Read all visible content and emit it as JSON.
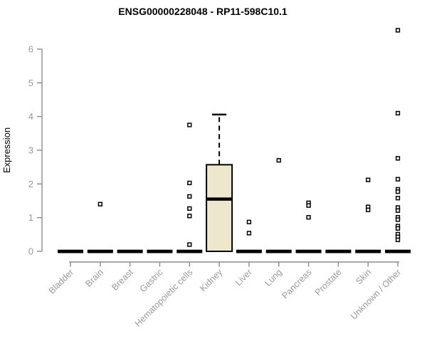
{
  "chart_data": {
    "type": "boxplot",
    "title": "ENSG00000228048 - RP11-598C10.1",
    "ylabel": "Expression",
    "xlabel": "",
    "ylim": [
      0,
      6.6
    ],
    "yticks": [
      0,
      1,
      2,
      3,
      4,
      5,
      6
    ],
    "grid": false,
    "legend": "none",
    "categories": [
      "Bladder",
      "Brain",
      "Breast",
      "Gastric",
      "Hematopoietic cells",
      "Kidney",
      "Liver",
      "Lung",
      "Pancreas",
      "Prostate",
      "Skin",
      "Unknown / Other"
    ],
    "series": [
      {
        "category": "Bladder",
        "q1": 0,
        "median": 0,
        "q3": 0,
        "whisker_low": 0,
        "whisker_high": 0,
        "outliers": []
      },
      {
        "category": "Brain",
        "q1": 0,
        "median": 0,
        "q3": 0,
        "whisker_low": 0,
        "whisker_high": 0,
        "outliers": [
          1.4
        ]
      },
      {
        "category": "Breast",
        "q1": 0,
        "median": 0,
        "q3": 0,
        "whisker_low": 0,
        "whisker_high": 0,
        "outliers": []
      },
      {
        "category": "Gastric",
        "q1": 0,
        "median": 0,
        "q3": 0,
        "whisker_low": 0,
        "whisker_high": 0,
        "outliers": []
      },
      {
        "category": "Hematopoietic cells",
        "q1": 0,
        "median": 0,
        "q3": 0,
        "whisker_low": 0,
        "whisker_high": 0,
        "outliers": [
          3.75,
          2.03,
          1.63,
          1.27,
          1.05,
          0.2
        ]
      },
      {
        "category": "Kidney",
        "q1": 0,
        "median": 1.55,
        "q3": 2.57,
        "whisker_low": 0,
        "whisker_high": 4.06,
        "outliers": []
      },
      {
        "category": "Liver",
        "q1": 0,
        "median": 0,
        "q3": 0,
        "whisker_low": 0,
        "whisker_high": 0,
        "outliers": [
          0.87,
          0.54
        ]
      },
      {
        "category": "Lung",
        "q1": 0,
        "median": 0,
        "q3": 0,
        "whisker_low": 0,
        "whisker_high": 0,
        "outliers": [
          2.7
        ]
      },
      {
        "category": "Pancreas",
        "q1": 0,
        "median": 0,
        "q3": 0,
        "whisker_low": 0,
        "whisker_high": 0,
        "outliers": [
          1.44,
          1.36,
          1.01
        ]
      },
      {
        "category": "Prostate",
        "q1": 0,
        "median": 0,
        "q3": 0,
        "whisker_low": 0,
        "whisker_high": 0,
        "outliers": []
      },
      {
        "category": "Skin",
        "q1": 0,
        "median": 0,
        "q3": 0,
        "whisker_low": 0,
        "whisker_high": 0,
        "outliers": [
          2.12,
          1.32,
          1.23
        ]
      },
      {
        "category": "Unknown / Other",
        "q1": 0,
        "median": 0,
        "q3": 0,
        "whisker_low": 0,
        "whisker_high": 0,
        "outliers": [
          6.56,
          4.1,
          2.76,
          2.14,
          1.84,
          1.77,
          1.58,
          1.3,
          1.21,
          1.01,
          0.94,
          0.75,
          0.68,
          0.51,
          0.43,
          0.34
        ]
      }
    ],
    "colors": {
      "background": "#ffffff",
      "box_fill": "#EDE8CD",
      "box_stroke": "#000000",
      "median": "#000000",
      "axis": "#8b8b8b",
      "tick_label": "#999999",
      "title": "#000000",
      "outlier_fill": "#ffffff"
    }
  }
}
